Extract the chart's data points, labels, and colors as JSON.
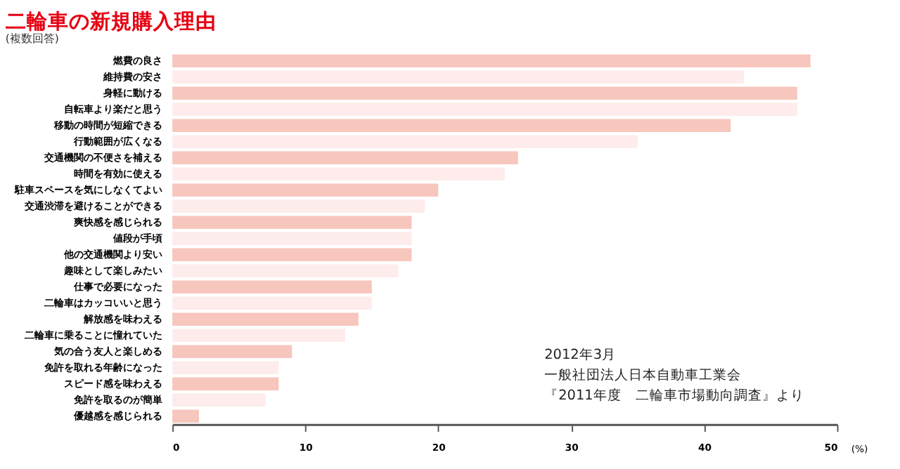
{
  "chart_data": {
    "type": "bar",
    "orientation": "horizontal",
    "title": "二輪車の新規購入理由",
    "subtitle": "(複数回答)",
    "xlabel": "(%)",
    "categories": [
      "燃費の良さ",
      "維持費の安さ",
      "身軽に動ける",
      "自転車より楽だと思う",
      "移動の時間が短縮できる",
      "行動範囲が広くなる",
      "交通機関の不便さを補える",
      "時間を有効に使える",
      "駐車スペースを気にしなくてよい",
      "交通渋滞を避けることができる",
      "爽快感を感じられる",
      "値段が手頃",
      "他の交通機関より安い",
      "趣味として楽しみたい",
      "仕事で必要になった",
      "二輪車はカッコいいと思う",
      "解放感を味わえる",
      "二輪車に乗ることに憧れていた",
      "気の合う友人と楽しめる",
      "免許を取れる年齢になった",
      "スピード感を味わえる",
      "免許を取るのが簡単",
      "優越感を感じられる"
    ],
    "values": [
      48,
      43,
      47,
      47,
      42,
      35,
      26,
      25,
      20,
      19,
      18,
      18,
      18,
      17,
      15,
      15,
      14,
      13,
      9,
      8,
      8,
      7,
      2
    ],
    "colors": [
      "#f7c6bd",
      "#fdeceb",
      "#f7c6bd",
      "#fdeceb",
      "#f7c6bd",
      "#fdeceb",
      "#f7c6bd",
      "#fdeceb",
      "#f7c6bd",
      "#fdeceb",
      "#f7c6bd",
      "#fdeceb",
      "#f7c6bd",
      "#fdeceb",
      "#f7c6bd",
      "#fdeceb",
      "#f7c6bd",
      "#fdeceb",
      "#f7c6bd",
      "#fdeceb",
      "#f7c6bd",
      "#fdeceb",
      "#f7c6bd"
    ],
    "xlim": [
      0,
      50
    ],
    "xticks": [
      0,
      10,
      20,
      30,
      40,
      50
    ],
    "grid": false,
    "legend": false,
    "annotations": [
      "2012年3月",
      "一般社団法人日本自動車工業会",
      "『2011年度　二輪車市場動向調査』より"
    ]
  }
}
